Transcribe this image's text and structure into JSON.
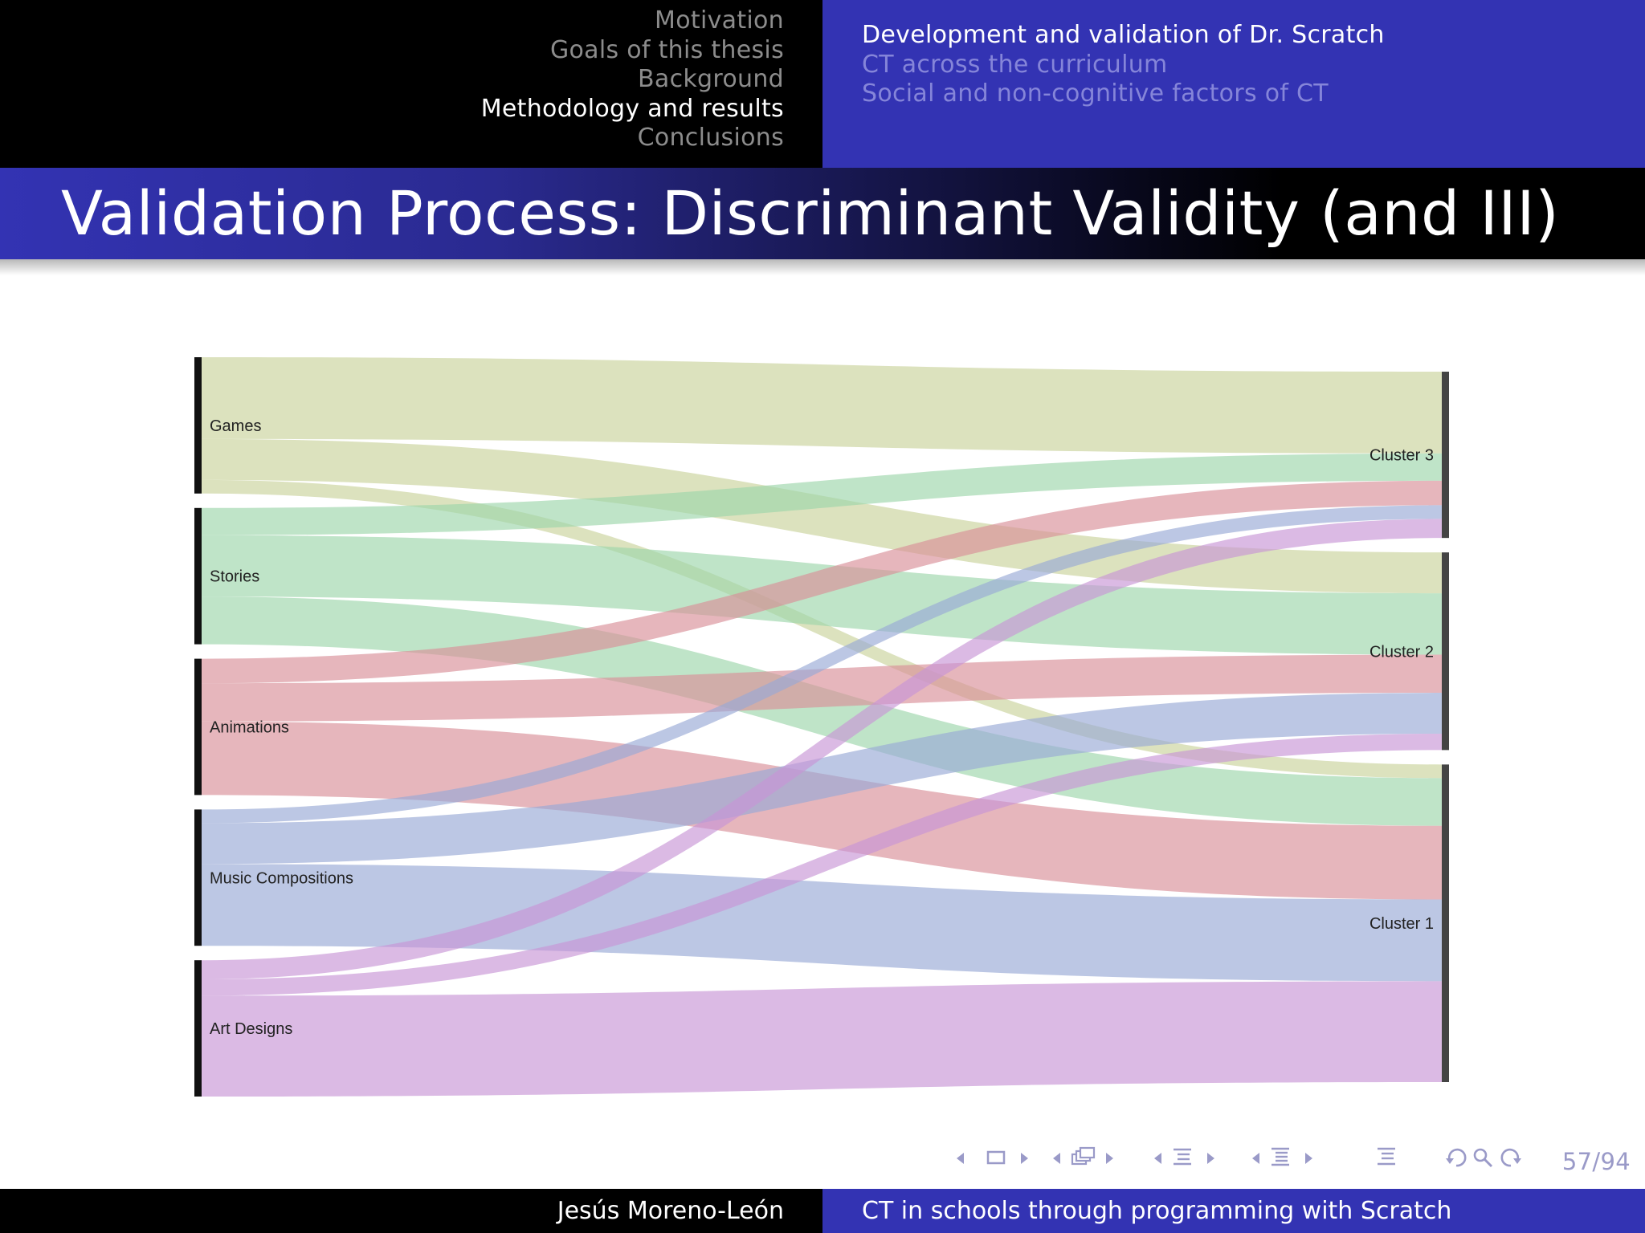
{
  "header": {
    "sections": [
      {
        "label": "Motivation",
        "active": false
      },
      {
        "label": "Goals of this thesis",
        "active": false
      },
      {
        "label": "Background",
        "active": false
      },
      {
        "label": "Methodology and results",
        "active": true
      },
      {
        "label": "Conclusions",
        "active": false
      }
    ],
    "subsections": [
      {
        "label": "Development and validation of Dr. Scratch",
        "active": true
      },
      {
        "label": "CT across the curriculum",
        "active": false
      },
      {
        "label": "Social and non-cognitive factors of CT",
        "active": false
      }
    ]
  },
  "frame": {
    "title": "Validation Process: Discriminant Validity (and III)"
  },
  "chart_data": {
    "type": "sankey",
    "sources": [
      "Games",
      "Stories",
      "Animations",
      "Music Compositions",
      "Art Designs"
    ],
    "targets": [
      "Cluster 3",
      "Cluster 2",
      "Cluster 1"
    ],
    "colors": {
      "Games": "#c9d29b",
      "Stories": "#9dd6ab",
      "Animations": "#d88f98",
      "Music Compositions": "#98a9d6",
      "Art Designs": "#c795d6"
    },
    "links": [
      {
        "source": "Games",
        "target": "Cluster 3",
        "value": 60
      },
      {
        "source": "Games",
        "target": "Cluster 2",
        "value": 30
      },
      {
        "source": "Games",
        "target": "Cluster 1",
        "value": 10
      },
      {
        "source": "Stories",
        "target": "Cluster 3",
        "value": 20
      },
      {
        "source": "Stories",
        "target": "Cluster 2",
        "value": 45
      },
      {
        "source": "Stories",
        "target": "Cluster 1",
        "value": 35
      },
      {
        "source": "Animations",
        "target": "Cluster 3",
        "value": 18
      },
      {
        "source": "Animations",
        "target": "Cluster 2",
        "value": 28
      },
      {
        "source": "Animations",
        "target": "Cluster 1",
        "value": 54
      },
      {
        "source": "Music Compositions",
        "target": "Cluster 3",
        "value": 10
      },
      {
        "source": "Music Compositions",
        "target": "Cluster 2",
        "value": 30
      },
      {
        "source": "Music Compositions",
        "target": "Cluster 1",
        "value": 60
      },
      {
        "source": "Art Designs",
        "target": "Cluster 3",
        "value": 14
      },
      {
        "source": "Art Designs",
        "target": "Cluster 2",
        "value": 12
      },
      {
        "source": "Art Designs",
        "target": "Cluster 1",
        "value": 74
      }
    ]
  },
  "navigation": {
    "page_counter": "57/94",
    "icons": [
      "frame-back-icon",
      "frame-icon",
      "frame-forward-icon",
      "subsection-back-icon",
      "subsection-icon",
      "subsection-forward-icon",
      "section-back-icon",
      "section-icon",
      "section-forward-icon",
      "outline-icon",
      "go-back-icon",
      "search-icon",
      "go-forward-icon"
    ]
  },
  "footer": {
    "author": "Jesús Moreno-León",
    "short_title": "CT in schools through programming with Scratch"
  }
}
